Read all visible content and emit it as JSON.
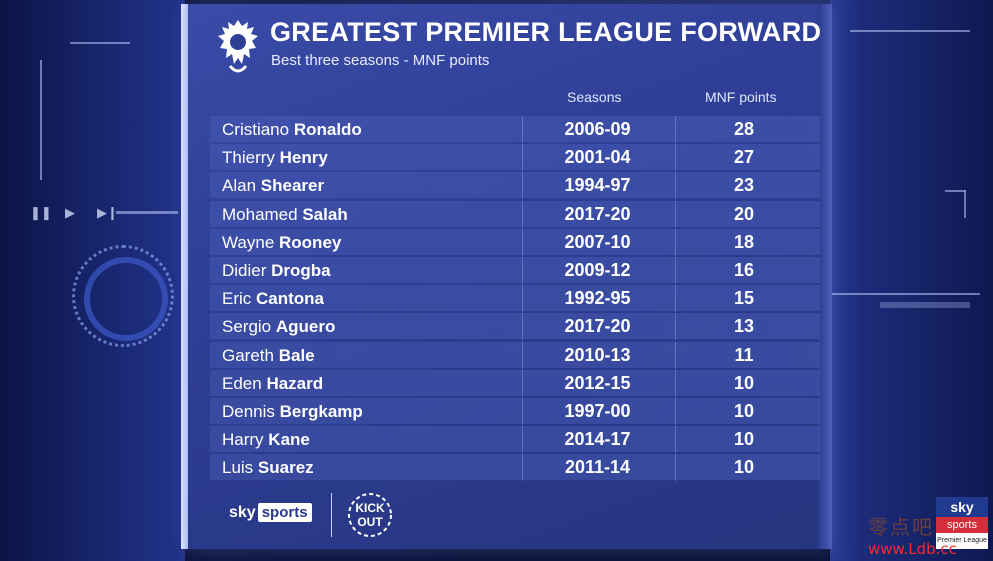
{
  "title": "GREATEST PREMIER LEAGUE FORWARD",
  "subtitle": "Best three seasons - MNF points",
  "columns": {
    "seasons": "Seasons",
    "points": "MNF points"
  },
  "rows": [
    {
      "first": "Cristiano",
      "last": "Ronaldo",
      "seasons": "2006-09",
      "points": "28"
    },
    {
      "first": "Thierry",
      "last": "Henry",
      "seasons": "2001-04",
      "points": "27"
    },
    {
      "first": "Alan",
      "last": "Shearer",
      "seasons": "1994-97",
      "points": "23"
    },
    {
      "first": "Mohamed",
      "last": "Salah",
      "seasons": "2017-20",
      "points": "20"
    },
    {
      "first": "Wayne",
      "last": "Rooney",
      "seasons": "2007-10",
      "points": "18"
    },
    {
      "first": "Didier",
      "last": "Drogba",
      "seasons": "2009-12",
      "points": "16"
    },
    {
      "first": "Eric",
      "last": "Cantona",
      "seasons": "1992-95",
      "points": "15"
    },
    {
      "first": "Sergio",
      "last": "Aguero",
      "seasons": "2017-20",
      "points": "13"
    },
    {
      "first": "Gareth",
      "last": "Bale",
      "seasons": "2010-13",
      "points": "11"
    },
    {
      "first": "Eden",
      "last": "Hazard",
      "seasons": "2012-15",
      "points": "10"
    },
    {
      "first": "Dennis",
      "last": "Bergkamp",
      "seasons": "1997-00",
      "points": "10"
    },
    {
      "first": "Harry",
      "last": "Kane",
      "seasons": "2014-17",
      "points": "10"
    },
    {
      "first": "Luis",
      "last": "Suarez",
      "seasons": "2011-14",
      "points": "10"
    }
  ],
  "footer": {
    "sky": "sky",
    "sports": "sports",
    "kick_it_out": "KICK IT OUT"
  },
  "bug": {
    "sky": "sky",
    "sports": "sports",
    "league": "Premier League"
  },
  "watermark": {
    "cn": "零点吧",
    "url": "www.Ldb.cc"
  },
  "icons": {
    "logo": "premier-league-lion-icon",
    "controls": [
      "pause-icon",
      "play-icon",
      "skip-icon"
    ]
  },
  "colors": {
    "panel": "#2e3e95",
    "accent": "#ffffff",
    "watermark": "#ff2c2c"
  }
}
